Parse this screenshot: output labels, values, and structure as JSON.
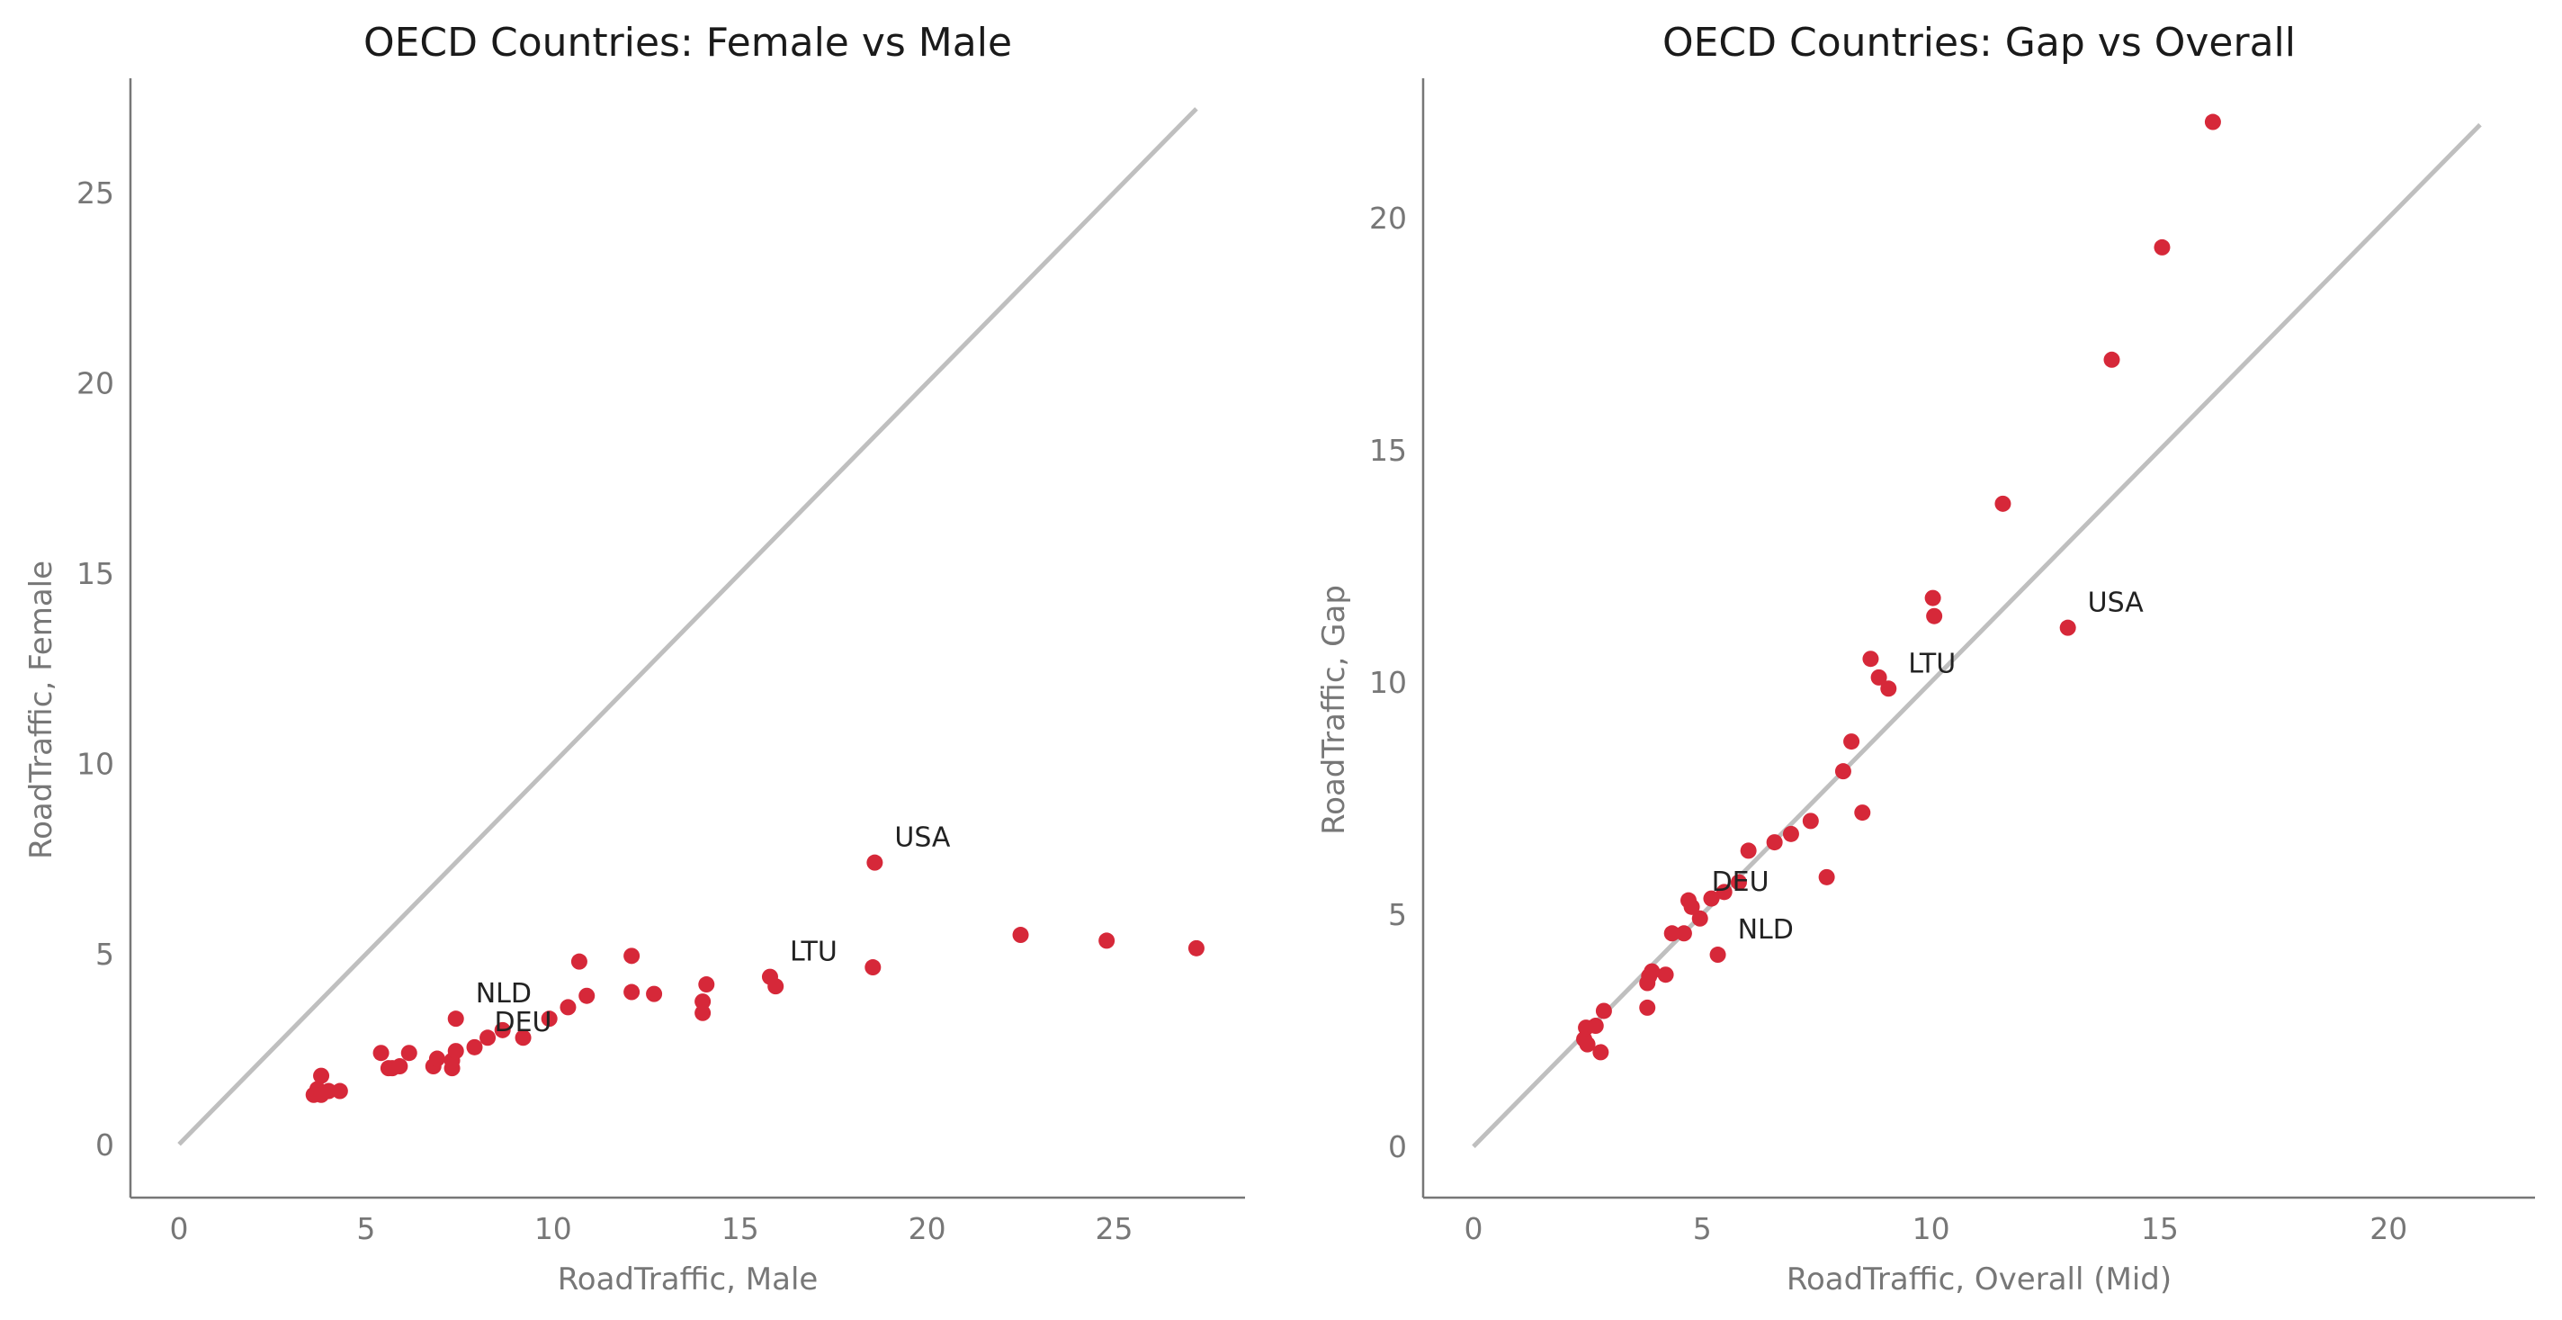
{
  "chart_data": [
    {
      "type": "scatter",
      "title": "OECD Countries: Female vs Male",
      "xlabel": "RoadTraffic, Male",
      "ylabel": "RoadTraffic, Female",
      "xlim": [
        -1.3,
        28.5
      ],
      "ylim": [
        -1.4,
        28.0
      ],
      "xticks": [
        0,
        5,
        10,
        15,
        20,
        25
      ],
      "yticks": [
        0,
        5,
        10,
        15,
        20,
        25
      ],
      "grid": false,
      "point_color": "#d62839",
      "reference_line": {
        "type": "identity",
        "from": 0,
        "to": 27.2,
        "color": "#bfbfbf"
      },
      "points": [
        {
          "x": 3.6,
          "y": 1.3
        },
        {
          "x": 3.7,
          "y": 1.45
        },
        {
          "x": 3.8,
          "y": 1.8
        },
        {
          "x": 3.8,
          "y": 1.3
        },
        {
          "x": 4.0,
          "y": 1.4
        },
        {
          "x": 4.3,
          "y": 1.4
        },
        {
          "x": 5.4,
          "y": 2.4
        },
        {
          "x": 5.6,
          "y": 2.0
        },
        {
          "x": 5.7,
          "y": 2.0
        },
        {
          "x": 5.9,
          "y": 2.05
        },
        {
          "x": 6.15,
          "y": 2.4
        },
        {
          "x": 6.8,
          "y": 2.05
        },
        {
          "x": 6.9,
          "y": 2.25
        },
        {
          "x": 7.3,
          "y": 2.0
        },
        {
          "x": 7.3,
          "y": 2.2
        },
        {
          "x": 7.4,
          "y": 3.3,
          "label": "NLD"
        },
        {
          "x": 7.4,
          "y": 2.45
        },
        {
          "x": 7.9,
          "y": 2.55,
          "label": "DEU"
        },
        {
          "x": 8.25,
          "y": 2.8
        },
        {
          "x": 8.65,
          "y": 3.0
        },
        {
          "x": 9.2,
          "y": 2.8
        },
        {
          "x": 9.9,
          "y": 3.3
        },
        {
          "x": 10.4,
          "y": 3.6
        },
        {
          "x": 10.7,
          "y": 4.8
        },
        {
          "x": 10.9,
          "y": 3.9
        },
        {
          "x": 12.1,
          "y": 4.95
        },
        {
          "x": 12.1,
          "y": 4.0
        },
        {
          "x": 12.7,
          "y": 3.95
        },
        {
          "x": 14.0,
          "y": 3.75
        },
        {
          "x": 14.0,
          "y": 3.45
        },
        {
          "x": 14.1,
          "y": 4.2
        },
        {
          "x": 15.8,
          "y": 4.4,
          "label": "LTU"
        },
        {
          "x": 15.95,
          "y": 4.15
        },
        {
          "x": 18.55,
          "y": 4.65
        },
        {
          "x": 18.6,
          "y": 7.4,
          "label": "USA"
        },
        {
          "x": 22.5,
          "y": 5.5
        },
        {
          "x": 24.8,
          "y": 5.35
        },
        {
          "x": 27.2,
          "y": 5.15
        }
      ]
    },
    {
      "type": "scatter",
      "title": "OECD Countries: Gap vs Overall",
      "xlabel": "RoadTraffic, Overall (Mid)",
      "ylabel": "RoadTraffic, Gap",
      "xlim": [
        -1.1,
        23.2
      ],
      "ylim": [
        -1.1,
        23.0
      ],
      "xticks": [
        0,
        5,
        10,
        15,
        20
      ],
      "yticks": [
        0,
        5,
        10,
        15,
        20
      ],
      "grid": false,
      "point_color": "#d62839",
      "reference_line": {
        "type": "identity",
        "from": 0,
        "to": 22.0,
        "color": "#bfbfbf"
      },
      "points": [
        {
          "x": 16.16,
          "y": 22.06
        },
        {
          "x": 15.05,
          "y": 19.36
        },
        {
          "x": 13.95,
          "y": 16.94
        },
        {
          "x": 11.57,
          "y": 13.84
        },
        {
          "x": 10.04,
          "y": 11.81
        },
        {
          "x": 10.07,
          "y": 11.42
        },
        {
          "x": 12.99,
          "y": 11.17,
          "label": "USA"
        },
        {
          "x": 8.68,
          "y": 10.5
        },
        {
          "x": 8.86,
          "y": 10.1
        },
        {
          "x": 9.07,
          "y": 9.86,
          "label": "LTU"
        },
        {
          "x": 8.26,
          "y": 8.72
        },
        {
          "x": 8.08,
          "y": 8.08
        },
        {
          "x": 8.5,
          "y": 7.19
        },
        {
          "x": 7.72,
          "y": 5.8
        },
        {
          "x": 7.37,
          "y": 7.01
        },
        {
          "x": 6.94,
          "y": 6.73
        },
        {
          "x": 6.58,
          "y": 6.55
        },
        {
          "x": 6.01,
          "y": 6.37
        },
        {
          "x": 5.8,
          "y": 5.69
        },
        {
          "x": 5.48,
          "y": 5.48
        },
        {
          "x": 5.2,
          "y": 5.34
        },
        {
          "x": 4.95,
          "y": 4.91
        },
        {
          "x": 4.7,
          "y": 5.3
        },
        {
          "x": 4.77,
          "y": 5.16,
          "label": "DEU"
        },
        {
          "x": 4.6,
          "y": 4.59
        },
        {
          "x": 4.34,
          "y": 4.59
        },
        {
          "x": 5.34,
          "y": 4.13,
          "label": "NLD"
        },
        {
          "x": 4.2,
          "y": 3.7
        },
        {
          "x": 3.84,
          "y": 3.67
        },
        {
          "x": 3.9,
          "y": 3.77
        },
        {
          "x": 3.8,
          "y": 3.52
        },
        {
          "x": 3.8,
          "y": 2.99
        },
        {
          "x": 2.85,
          "y": 2.92
        },
        {
          "x": 2.67,
          "y": 2.6
        },
        {
          "x": 2.46,
          "y": 2.56
        },
        {
          "x": 2.42,
          "y": 2.31
        },
        {
          "x": 2.49,
          "y": 2.2
        },
        {
          "x": 2.78,
          "y": 2.03
        }
      ]
    }
  ]
}
